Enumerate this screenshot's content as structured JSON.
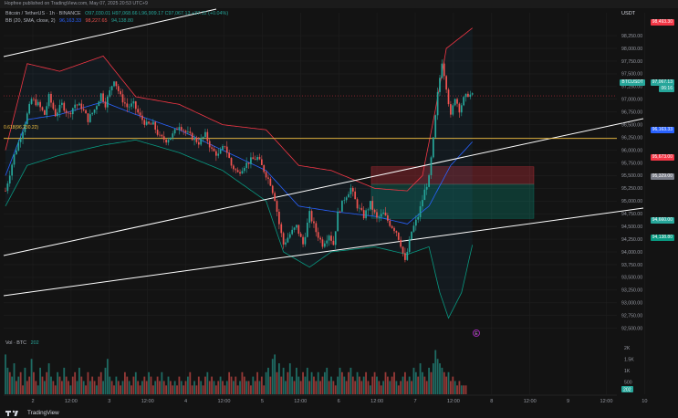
{
  "page": {
    "publish_note": "Hopfree published on TradingView.com, May 07, 2025 20:53 UTC+9"
  },
  "header": {
    "symbol": "Bitcoin / TetherUS · 1h · BINANCE",
    "ohlc": "O97,030.01  H97,068.66  L96,909.17  C97,067.13  +37.12 (+0.04%)",
    "bb_title": "BB (20, SMA, close, 2)",
    "bb_basis": "96,163.33",
    "bb_upper": "98,227.65",
    "bb_lower": "94,138.80"
  },
  "currency": "USDT",
  "fib_label": "0.618(96,230.22)",
  "price_labels": {
    "top": "98,493.30",
    "symbol_tag": "BTCUSDT",
    "current": "97,067.13",
    "countdown": "06:16",
    "basis": "96,163.33",
    "stop": "95,673.00",
    "entry": "95,329.00",
    "target": "94,660.00",
    "lower": "94,138.80"
  },
  "volume": {
    "label": "Vol · BTC",
    "value": "202",
    "ticks": [
      "2K",
      "1.5K",
      "1K",
      "500"
    ]
  },
  "marker_text": "E",
  "footer": {
    "brand": "TradingView"
  },
  "colors": {
    "background": "#131313",
    "up": "#26a69a",
    "down": "#ef5350",
    "bb_basis": "#2962ff",
    "bb_upper": "#f23645",
    "bb_lower": "#089981",
    "fib": "#f6c343",
    "channel": "#ffffff"
  },
  "chart_data": {
    "type": "candlestick",
    "title": "Bitcoin / TetherUS · 1h · BINANCE",
    "x_tick_labels": [
      "2",
      "12:00",
      "3",
      "12:00",
      "4",
      "12:00",
      "5",
      "12:00",
      "6",
      "12:00",
      "7",
      "12:00",
      "8",
      "12:00",
      "9",
      "12:00",
      "10"
    ],
    "y_tick_labels": [
      "98,250.00",
      "98,000.00",
      "97,750.00",
      "97,500.00",
      "97,250.00",
      "97,000.00",
      "96,750.00",
      "96,500.00",
      "96,250.00",
      "96,000.00",
      "95,750.00",
      "95,500.00",
      "95,250.00",
      "95,000.00",
      "94,750.00",
      "94,500.00",
      "94,250.00",
      "94,000.00",
      "93,750.00",
      "93,500.00",
      "93,250.00",
      "93,000.00",
      "92,750.00",
      "92,500.00"
    ],
    "ylim": [
      92350,
      98700
    ],
    "horizontal_lines": [
      {
        "name": "0.618 Fib",
        "value": 96230.22
      },
      {
        "name": "BB basis",
        "value": 96163.33
      }
    ],
    "position": {
      "entry": 95329,
      "stop": 95673,
      "target": 94660
    },
    "close_path": [
      [
        0,
        95200
      ],
      [
        4,
        95900
      ],
      [
        8,
        96400
      ],
      [
        12,
        97000
      ],
      [
        15,
        96900
      ],
      [
        18,
        96700
      ],
      [
        20,
        97050
      ],
      [
        23,
        96700
      ],
      [
        26,
        96900
      ],
      [
        29,
        96700
      ],
      [
        32,
        96900
      ],
      [
        35,
        96850
      ],
      [
        38,
        96600
      ],
      [
        41,
        96800
      ],
      [
        44,
        97100
      ],
      [
        46,
        96900
      ],
      [
        48,
        97150
      ],
      [
        50,
        97400
      ],
      [
        53,
        97050
      ],
      [
        56,
        96850
      ],
      [
        59,
        96900
      ],
      [
        62,
        96650
      ],
      [
        65,
        96500
      ],
      [
        68,
        96500
      ],
      [
        71,
        96250
      ],
      [
        74,
        96200
      ],
      [
        77,
        96300
      ],
      [
        80,
        96500
      ],
      [
        83,
        96350
      ],
      [
        86,
        96250
      ],
      [
        89,
        96150
      ],
      [
        92,
        96300
      ],
      [
        95,
        96000
      ],
      [
        98,
        95900
      ],
      [
        101,
        96100
      ],
      [
        104,
        95700
      ],
      [
        107,
        95550
      ],
      [
        110,
        95700
      ],
      [
        113,
        95800
      ],
      [
        116,
        95850
      ],
      [
        119,
        95600
      ],
      [
        122,
        95350
      ],
      [
        124,
        95050
      ],
      [
        126,
        94550
      ],
      [
        128,
        94150
      ],
      [
        131,
        94350
      ],
      [
        134,
        94500
      ],
      [
        137,
        94150
      ],
      [
        140,
        94750
      ],
      [
        143,
        94400
      ],
      [
        146,
        94150
      ],
      [
        149,
        94350
      ],
      [
        151,
        94150
      ],
      [
        153,
        94750
      ],
      [
        156,
        95050
      ],
      [
        159,
        95250
      ],
      [
        162,
        94900
      ],
      [
        165,
        94700
      ],
      [
        168,
        94950
      ],
      [
        171,
        94650
      ],
      [
        174,
        94750
      ],
      [
        177,
        94550
      ],
      [
        180,
        94400
      ],
      [
        182,
        94150
      ],
      [
        184,
        93800
      ],
      [
        187,
        94400
      ],
      [
        190,
        94700
      ],
      [
        193,
        95200
      ],
      [
        195,
        95450
      ],
      [
        197,
        96200
      ],
      [
        199,
        97100
      ],
      [
        201,
        97750
      ],
      [
        203,
        97250
      ],
      [
        205,
        96650
      ],
      [
        207,
        97050
      ],
      [
        209,
        96800
      ],
      [
        211,
        97000
      ],
      [
        213,
        97100
      ],
      [
        215,
        97067
      ]
    ],
    "bb_upper": [
      [
        0,
        96000
      ],
      [
        10,
        97700
      ],
      [
        25,
        97550
      ],
      [
        45,
        97850
      ],
      [
        60,
        97050
      ],
      [
        80,
        96900
      ],
      [
        100,
        96500
      ],
      [
        120,
        96400
      ],
      [
        135,
        95700
      ],
      [
        150,
        95600
      ],
      [
        170,
        95250
      ],
      [
        185,
        95200
      ],
      [
        192,
        95500
      ],
      [
        198,
        96800
      ],
      [
        203,
        98000
      ],
      [
        215,
        98400
      ]
    ],
    "bb_basis": [
      [
        0,
        95500
      ],
      [
        10,
        96600
      ],
      [
        25,
        96700
      ],
      [
        45,
        96950
      ],
      [
        60,
        96700
      ],
      [
        80,
        96400
      ],
      [
        100,
        96000
      ],
      [
        120,
        95600
      ],
      [
        135,
        94900
      ],
      [
        150,
        94800
      ],
      [
        170,
        94700
      ],
      [
        185,
        94550
      ],
      [
        195,
        94900
      ],
      [
        205,
        95700
      ],
      [
        215,
        96163
      ]
    ],
    "bb_lower": [
      [
        0,
        94900
      ],
      [
        10,
        95700
      ],
      [
        25,
        95900
      ],
      [
        45,
        96100
      ],
      [
        60,
        96200
      ],
      [
        80,
        95950
      ],
      [
        100,
        95600
      ],
      [
        120,
        95000
      ],
      [
        128,
        94000
      ],
      [
        140,
        93700
      ],
      [
        150,
        94000
      ],
      [
        170,
        94100
      ],
      [
        185,
        93950
      ],
      [
        195,
        94100
      ],
      [
        200,
        93200
      ],
      [
        204,
        92700
      ],
      [
        210,
        93200
      ],
      [
        215,
        94139
      ]
    ],
    "volume": [
      0.9,
      0.6,
      0.5,
      0.4,
      0.7,
      0.3,
      0.4,
      0.5,
      0.2,
      0.6,
      0.3,
      0.4,
      0.8,
      0.5,
      0.3,
      0.2,
      0.6,
      0.4,
      0.3,
      0.5,
      0.7,
      0.4,
      0.3,
      0.2,
      0.5,
      0.4,
      0.3,
      0.6,
      0.4,
      0.3,
      0.2,
      0.4,
      0.5,
      0.3,
      0.6,
      0.4,
      0.3,
      0.2,
      0.5,
      0.3,
      0.4,
      0.3,
      0.2,
      0.4,
      0.5,
      0.3,
      0.6,
      0.8,
      0.4,
      0.3,
      0.2,
      0.4,
      0.3,
      0.2,
      0.3,
      0.5,
      0.4,
      0.3,
      0.2,
      0.4,
      0.5,
      0.3,
      0.2,
      0.3,
      0.4,
      0.3,
      0.5,
      0.4,
      0.2,
      0.3,
      0.4,
      0.3,
      0.5,
      0.3,
      0.2,
      0.4,
      0.3,
      0.2,
      0.3,
      0.2,
      0.4,
      0.3,
      0.2,
      0.3,
      0.4,
      0.5,
      0.2,
      0.3,
      0.2,
      0.4,
      0.3,
      0.2,
      0.4,
      0.5,
      0.3,
      0.4,
      0.3,
      0.2,
      0.3,
      0.4,
      0.3,
      0.2,
      0.3,
      0.5,
      0.4,
      0.3,
      0.4,
      0.2,
      0.3,
      0.5,
      0.4,
      0.3,
      0.3,
      0.2,
      0.4,
      0.3,
      0.5,
      0.3,
      0.4,
      0.2,
      0.5,
      0.6,
      0.4,
      0.8,
      0.9,
      0.5,
      0.7,
      0.4,
      0.6,
      0.3,
      0.5,
      0.7,
      0.4,
      0.3,
      0.6,
      0.4,
      0.3,
      0.5,
      0.4,
      0.6,
      0.3,
      0.5,
      0.4,
      0.3,
      0.5,
      0.3,
      0.4,
      0.5,
      0.6,
      0.3,
      0.4,
      0.3,
      0.2,
      0.4,
      0.6,
      0.5,
      0.4,
      0.3,
      0.5,
      0.6,
      0.4,
      0.3,
      0.5,
      0.4,
      0.3,
      0.4,
      0.5,
      0.3,
      0.2,
      0.4,
      0.5,
      0.4,
      0.3,
      0.2,
      0.3,
      0.5,
      0.4,
      0.3,
      0.4,
      0.5,
      0.3,
      0.2,
      0.3,
      0.4,
      0.5,
      0.3,
      0.4,
      0.3,
      0.6,
      0.5,
      0.4,
      0.7,
      0.5,
      0.4,
      0.3,
      0.6,
      0.5,
      0.7,
      1.0,
      0.8,
      0.7,
      0.6,
      0.5,
      0.4,
      0.5,
      0.3,
      0.4,
      0.3,
      0.2,
      0.3,
      0.2,
      0.2,
      0.2
    ]
  }
}
